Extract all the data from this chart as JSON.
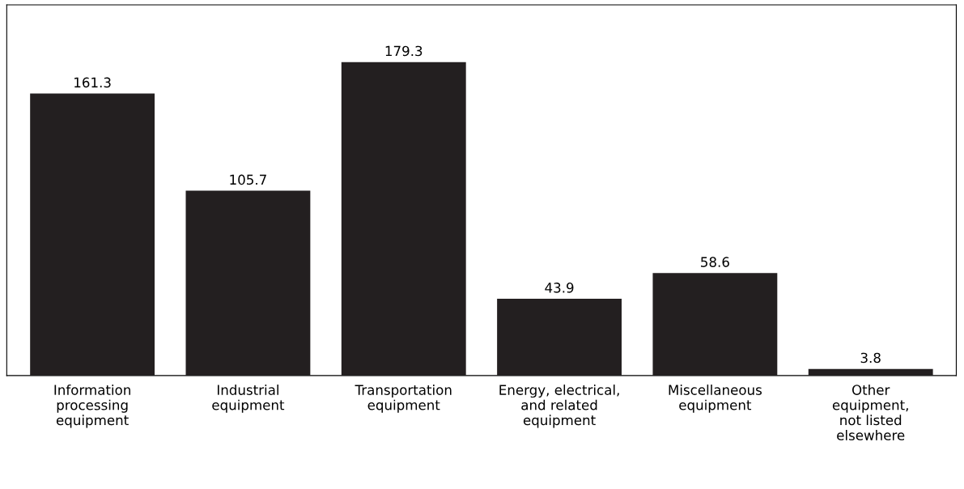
{
  "chart_data": {
    "type": "bar",
    "categories": [
      "Information\nprocessing\nequipment",
      "Industrial\nequipment",
      "Transportation\nequipment",
      "Energy, electrical,\nand related\nequipment",
      "Miscellaneous\nequipment",
      "Other\nequipment,\nnot listed\nelsewhere"
    ],
    "values": [
      161.3,
      105.7,
      179.3,
      43.9,
      58.6,
      3.8
    ],
    "color": "#231f20",
    "ylim": [
      0,
      212
    ],
    "data_labels": true,
    "grid": false,
    "legend": false
  }
}
